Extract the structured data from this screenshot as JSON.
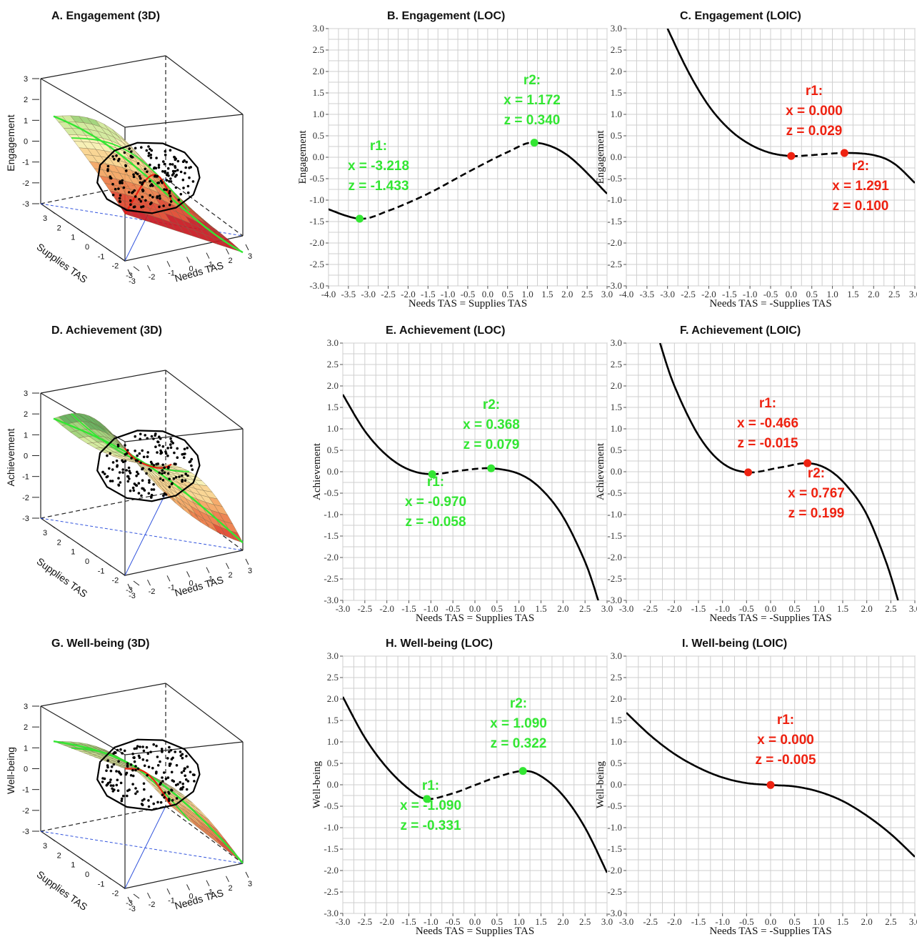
{
  "colors": {
    "green": "#33e633",
    "red": "#ee2211",
    "grid": "#cfcfcf",
    "panel_border": "#9a9a9a"
  },
  "panels_3d": [
    {
      "title": "A. Engagement (3D)",
      "zlabel": "Engagement",
      "xlabel": "Needs TAS",
      "ylabel": "Supplies TAS",
      "zticks": [
        "3",
        "2",
        "1",
        "0",
        "-1",
        "-2",
        "-3"
      ],
      "xticks": [
        "-3",
        "-2",
        "-1",
        "0",
        "1",
        "2",
        "3"
      ],
      "yticks": [
        "3",
        "2",
        "1",
        "0",
        "-1",
        "-2",
        "-3"
      ]
    },
    {
      "title": "D. Achievement (3D)",
      "zlabel": "Achievement",
      "xlabel": "Needs TAS",
      "ylabel": "Supplies TAS",
      "zticks": [
        "3",
        "2",
        "1",
        "0",
        "-1",
        "-2",
        "-3"
      ],
      "xticks": [
        "-3",
        "-2",
        "-1",
        "0",
        "1",
        "2",
        "3"
      ],
      "yticks": [
        "3",
        "2",
        "1",
        "0",
        "-1",
        "-2",
        "-3"
      ]
    },
    {
      "title": "G. Well-being (3D)",
      "zlabel": "Well-being",
      "xlabel": "Needs TAS",
      "ylabel": "Supplies TAS",
      "zticks": [
        "3",
        "2",
        "1",
        "0",
        "-1",
        "-2",
        "-3"
      ],
      "xticks": [
        "-3",
        "-2",
        "-1",
        "0",
        "1",
        "2",
        "3"
      ],
      "yticks": [
        "3",
        "2",
        "1",
        "0",
        "-1",
        "-2",
        "-3"
      ]
    }
  ],
  "chart_data": [
    {
      "id": "B",
      "type": "line",
      "title": "B. Engagement (LOC)",
      "xlabel": "Needs TAS = Supplies TAS",
      "ylabel": "Engagement",
      "xlim": [
        -4.0,
        3.0
      ],
      "ylim": [
        -3.0,
        3.0
      ],
      "xtick_step": 0.5,
      "ytick_step": 0.5,
      "x": [
        -4.1,
        -3.218,
        -2.5,
        -1.5,
        -0.5,
        0.5,
        1.172,
        2.0,
        3.0
      ],
      "y": [
        -1.18,
        -1.433,
        -1.25,
        -0.85,
        -0.35,
        0.12,
        0.34,
        0.05,
        -0.85
      ],
      "dashed_range": [
        -3.218,
        1.172
      ],
      "color": "#33e633",
      "points": [
        {
          "name": "r1",
          "x": -3.218,
          "z": -1.433,
          "label": "r1:",
          "xlabel": "x = -3.218",
          "zlabel": "z = -1.433"
        },
        {
          "name": "r2",
          "x": 1.172,
          "z": 0.34,
          "label": "r2:",
          "xlabel": "x = 1.172",
          "zlabel": "z = 0.340"
        }
      ]
    },
    {
      "id": "C",
      "type": "line",
      "title": "C. Engagement (LOIC)",
      "xlabel": "Needs TAS = -Supplies TAS",
      "ylabel": "Engagement",
      "xlim": [
        -4.0,
        3.0
      ],
      "ylim": [
        -3.0,
        3.0
      ],
      "xtick_step": 0.5,
      "ytick_step": 0.5,
      "x": [
        -3.0,
        -2.5,
        -2.0,
        -1.5,
        -1.0,
        -0.5,
        0.0,
        0.5,
        1.291,
        2.0,
        2.5,
        3.0
      ],
      "y": [
        3.0,
        2.0,
        1.2,
        0.65,
        0.3,
        0.1,
        0.029,
        0.05,
        0.1,
        0.05,
        -0.15,
        -0.6
      ],
      "dashed_range": [
        0.0,
        1.291
      ],
      "color": "#ee2211",
      "points": [
        {
          "name": "r1",
          "x": 0.0,
          "z": 0.029,
          "label": "r1:",
          "xlabel": "x = 0.000",
          "zlabel": "z = 0.029"
        },
        {
          "name": "r2",
          "x": 1.291,
          "z": 0.1,
          "label": "r2:",
          "xlabel": "x = 1.291",
          "zlabel": "z = 0.100"
        }
      ]
    },
    {
      "id": "E",
      "type": "line",
      "title": "E. Achievement (LOC)",
      "xlabel": "Needs TAS = Supplies TAS",
      "ylabel": "Achievement",
      "xlim": [
        -3.0,
        3.0
      ],
      "ylim": [
        -3.0,
        3.0
      ],
      "xtick_step": 0.5,
      "ytick_step": 0.5,
      "x": [
        -3.0,
        -2.5,
        -2.0,
        -1.5,
        -0.97,
        -0.3,
        0.368,
        1.0,
        1.5,
        2.0,
        2.5,
        2.8
      ],
      "y": [
        1.8,
        0.95,
        0.38,
        0.05,
        -0.058,
        0.03,
        0.079,
        -0.05,
        -0.4,
        -1.05,
        -2.1,
        -3.0
      ],
      "dashed_range": [
        -0.97,
        0.368
      ],
      "color": "#33e633",
      "points": [
        {
          "name": "r1",
          "x": -0.97,
          "z": -0.058,
          "label": "r1:",
          "xlabel": "x = -0.970",
          "zlabel": "z = -0.058"
        },
        {
          "name": "r2",
          "x": 0.368,
          "z": 0.079,
          "label": "r2:",
          "xlabel": "x = 0.368",
          "zlabel": "z = 0.079"
        }
      ]
    },
    {
      "id": "F",
      "type": "line",
      "title": "F. Achievement (LOIC)",
      "xlabel": "Needs TAS = -Supplies TAS",
      "ylabel": "Achievement",
      "xlim": [
        -3.0,
        3.0
      ],
      "ylim": [
        -3.0,
        3.0
      ],
      "xtick_step": 0.5,
      "ytick_step": 0.5,
      "x": [
        -2.3,
        -2.0,
        -1.5,
        -1.0,
        -0.466,
        0.2,
        0.767,
        1.2,
        1.6,
        2.0,
        2.4,
        2.65
      ],
      "y": [
        3.0,
        2.0,
        0.85,
        0.2,
        -0.015,
        0.1,
        0.199,
        0.05,
        -0.35,
        -1.0,
        -2.1,
        -3.0
      ],
      "dashed_range": [
        -0.466,
        0.767
      ],
      "color": "#ee2211",
      "points": [
        {
          "name": "r1",
          "x": -0.466,
          "z": -0.015,
          "label": "r1:",
          "xlabel": "x = -0.466",
          "zlabel": "z = -0.015"
        },
        {
          "name": "r2",
          "x": 0.767,
          "z": 0.199,
          "label": "r2:",
          "xlabel": "x = 0.767",
          "zlabel": "z = 0.199"
        }
      ]
    },
    {
      "id": "H",
      "type": "line",
      "title": "H. Well-being (LOC)",
      "xlabel": "Needs TAS = Supplies TAS",
      "ylabel": "Well-being",
      "xlim": [
        -3.0,
        3.0
      ],
      "ylim": [
        -3.0,
        3.0
      ],
      "xtick_step": 0.5,
      "ytick_step": 0.5,
      "x": [
        -3.0,
        -2.5,
        -2.0,
        -1.5,
        -1.09,
        -0.5,
        0.0,
        0.5,
        1.09,
        1.5,
        2.0,
        2.5,
        3.0
      ],
      "y": [
        2.05,
        1.1,
        0.4,
        -0.1,
        -0.331,
        -0.2,
        -0.01,
        0.18,
        0.322,
        0.2,
        -0.25,
        -1.0,
        -2.05
      ],
      "dashed_range": [
        -1.09,
        1.09
      ],
      "color": "#33e633",
      "points": [
        {
          "name": "r1",
          "x": -1.09,
          "z": -0.331,
          "label": "r1:",
          "xlabel": "x = -1.090",
          "zlabel": "z = -0.331"
        },
        {
          "name": "r2",
          "x": 1.09,
          "z": 0.322,
          "label": "r2:",
          "xlabel": "x = 1.090",
          "zlabel": "z = 0.322"
        }
      ]
    },
    {
      "id": "I",
      "type": "line",
      "title": "I. Well-being (LOIC)",
      "xlabel": "Needs TAS = -Supplies TAS",
      "ylabel": "Well-being",
      "xlim": [
        -3.0,
        3.0
      ],
      "ylim": [
        -3.0,
        3.0
      ],
      "xtick_step": 0.5,
      "ytick_step": 0.5,
      "x": [
        -3.0,
        -2.5,
        -2.0,
        -1.5,
        -1.0,
        -0.5,
        0.0,
        0.5,
        1.0,
        1.5,
        2.0,
        2.5,
        3.0
      ],
      "y": [
        1.68,
        1.15,
        0.72,
        0.4,
        0.17,
        0.04,
        -0.005,
        -0.04,
        -0.16,
        -0.38,
        -0.72,
        -1.15,
        -1.68
      ],
      "dashed_range": null,
      "color": "#ee2211",
      "points": [
        {
          "name": "r1",
          "x": 0.0,
          "z": -0.005,
          "label": "r1:",
          "xlabel": "x = 0.000",
          "zlabel": "z = -0.005"
        }
      ]
    }
  ]
}
